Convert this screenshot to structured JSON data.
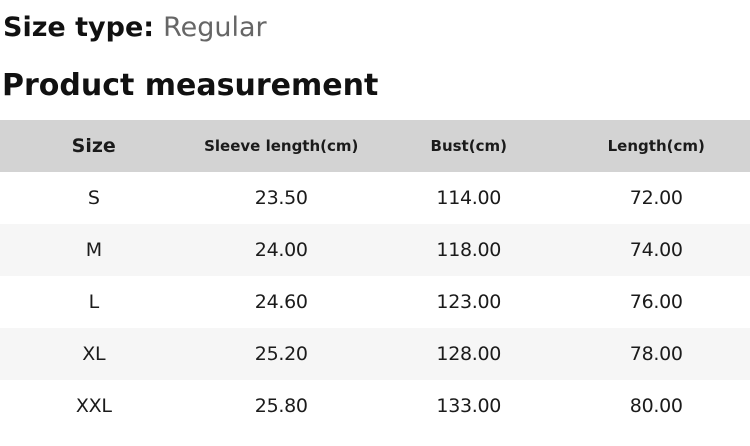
{
  "page": {
    "size_type_label": "Size type:",
    "size_type_value": "Regular",
    "section_title": "Product measurement"
  },
  "table": {
    "headers": [
      "Size",
      "Sleeve length(cm)",
      "Bust(cm)",
      "Length(cm)"
    ],
    "rows": [
      {
        "size": "S",
        "sleeve": "23.50",
        "bust": "114.00",
        "length": "72.00"
      },
      {
        "size": "M",
        "sleeve": "24.00",
        "bust": "118.00",
        "length": "74.00"
      },
      {
        "size": "L",
        "sleeve": "24.60",
        "bust": "123.00",
        "length": "76.00"
      },
      {
        "size": "XL",
        "sleeve": "25.20",
        "bust": "128.00",
        "length": "78.00"
      },
      {
        "size": "XXL",
        "sleeve": "25.80",
        "bust": "133.00",
        "length": "80.00"
      }
    ]
  },
  "colors": {
    "header_row_bg": "#d3d3d3",
    "zebra_row_bg": "#f6f6f6",
    "heading_text": "#111111",
    "muted_text": "#666666",
    "body_text": "#1b1b1b"
  }
}
